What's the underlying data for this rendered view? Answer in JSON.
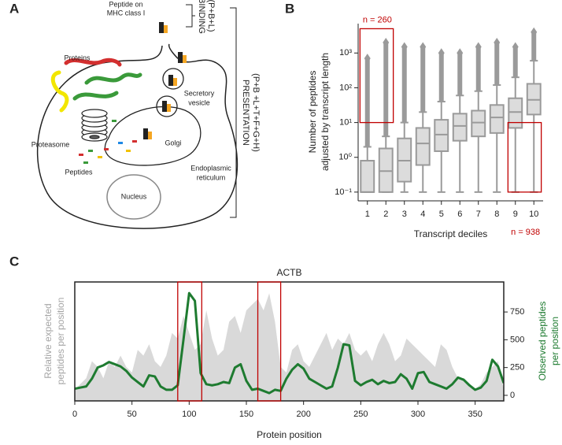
{
  "diagram": {
    "panel_label": "A",
    "labels": {
      "peptide_on_mhc": [
        "Peptide on",
        "MHC class I"
      ],
      "binding": [
        "BINDING",
        "(P+B+L)"
      ],
      "proteins": "Proteins",
      "proteasome": "Proteasome",
      "peptides": "Peptides",
      "secretory_vesicle": [
        "Secretory",
        "vesicle"
      ],
      "golgi": "Golgi",
      "er": [
        "Endoplasmic",
        "reticulum"
      ],
      "nucleus": "Nucleus",
      "presentation": [
        "PRESENTATION",
        "(P+B +L+T+F+G+H)"
      ]
    }
  },
  "chart_data": [
    {
      "type": "box",
      "panel_label": "B",
      "categories": [
        "1",
        "2",
        "3",
        "4",
        "5",
        "6",
        "7",
        "8",
        "9",
        "10"
      ],
      "x_label": "Transcript deciles",
      "y_label": [
        "Number of peptides",
        "adjusted by transcript length"
      ],
      "log_scale": true,
      "ylim": [
        0.056,
        7000
      ],
      "yticks": [
        {
          "value": 0.1,
          "label": "10⁻¹"
        },
        {
          "value": 1,
          "label": "10⁰"
        },
        {
          "value": 10,
          "label": "10¹"
        },
        {
          "value": 100,
          "label": "10²"
        },
        {
          "value": 1000,
          "label": "10³"
        }
      ],
      "color": "#dcdcdc",
      "edge_color": "#9a9a9a",
      "boxes": {
        "whisker_low": [
          0.1,
          0.1,
          0.1,
          0.1,
          0.1,
          0.1,
          0.1,
          0.1,
          0.1,
          0.1
        ],
        "q1": [
          0.1,
          0.1,
          0.2,
          0.6,
          1.5,
          3,
          4,
          5,
          7,
          17
        ],
        "median": [
          0.1,
          0.4,
          0.8,
          2.5,
          4.5,
          8,
          10,
          14,
          20,
          45
        ],
        "q3": [
          0.8,
          1.8,
          3.5,
          7,
          12,
          18,
          22,
          32,
          50,
          130
        ],
        "whisker_high": [
          2,
          4,
          10,
          20,
          40,
          60,
          80,
          120,
          200,
          600
        ],
        "outlier_max": [
          700,
          2000,
          1500,
          1500,
          1000,
          1000,
          1500,
          2000,
          1500,
          4000
        ]
      },
      "highlight_color": "#c00000",
      "highlights": [
        {
          "x": [
            0.6,
            2.4
          ],
          "y": [
            10,
            5000
          ],
          "label": "n = 260"
        },
        {
          "x": [
            8.6,
            10.4
          ],
          "y": [
            0.1,
            10
          ],
          "label": "n = 938"
        }
      ]
    },
    {
      "type": "line_area",
      "panel_label": "C",
      "title": "ACTB",
      "x_label": "Protein position",
      "y_label": [
        "Relative expected",
        "peptides per position"
      ],
      "y2_label": [
        "Observed peptides",
        "per position"
      ],
      "x": [
        0,
        5,
        10,
        15,
        20,
        25,
        30,
        35,
        40,
        45,
        50,
        55,
        60,
        65,
        70,
        75,
        80,
        85,
        90,
        95,
        100,
        105,
        110,
        115,
        120,
        125,
        130,
        135,
        140,
        145,
        150,
        155,
        160,
        165,
        170,
        175,
        180,
        185,
        190,
        195,
        200,
        205,
        210,
        215,
        220,
        225,
        230,
        235,
        240,
        245,
        250,
        255,
        260,
        265,
        270,
        275,
        280,
        285,
        290,
        295,
        300,
        305,
        310,
        315,
        320,
        325,
        330,
        335,
        340,
        345,
        350,
        355,
        360,
        365,
        370,
        375
      ],
      "xlim": [
        0,
        375
      ],
      "xticks": [
        0,
        50,
        100,
        150,
        200,
        250,
        300,
        350
      ],
      "ylim": [
        0,
        1.05
      ],
      "y2lim": [
        -50,
        1020
      ],
      "y2ticks": [
        0,
        250,
        500,
        750
      ],
      "series": [
        {
          "color": "#d9d9d9",
          "axis": "y",
          "values": [
            0.1,
            0.15,
            0.2,
            0.35,
            0.3,
            0.2,
            0.35,
            0.3,
            0.4,
            0.3,
            0.25,
            0.45,
            0.4,
            0.5,
            0.35,
            0.3,
            0.4,
            0.6,
            0.55,
            0.75,
            0.6,
            0.45,
            0.5,
            0.8,
            0.55,
            0.4,
            0.45,
            0.7,
            0.75,
            0.6,
            0.8,
            0.85,
            0.9,
            0.8,
            0.95,
            0.7,
            0.3,
            0.25,
            0.45,
            0.5,
            0.35,
            0.3,
            0.4,
            0.5,
            0.6,
            0.45,
            0.55,
            0.5,
            0.6,
            0.45,
            0.4,
            0.45,
            0.35,
            0.5,
            0.6,
            0.5,
            0.35,
            0.4,
            0.55,
            0.5,
            0.45,
            0.4,
            0.35,
            0.3,
            0.5,
            0.45,
            0.3,
            0.2,
            0.2,
            0.15,
            0.1,
            0.15,
            0.25,
            0.3,
            0.35,
            0.1
          ]
        },
        {
          "color": "#1e7b30",
          "axis": "y2",
          "values": [
            60,
            70,
            80,
            150,
            250,
            270,
            300,
            280,
            260,
            220,
            160,
            120,
            80,
            180,
            170,
            80,
            50,
            50,
            90,
            500,
            920,
            850,
            200,
            100,
            90,
            100,
            120,
            110,
            250,
            280,
            130,
            50,
            60,
            40,
            20,
            50,
            40,
            150,
            230,
            280,
            240,
            150,
            120,
            90,
            60,
            80,
            250,
            460,
            450,
            130,
            90,
            120,
            140,
            100,
            130,
            110,
            120,
            190,
            150,
            60,
            200,
            210,
            120,
            100,
            80,
            60,
            100,
            160,
            140,
            90,
            50,
            70,
            130,
            320,
            260,
            110
          ]
        }
      ],
      "highlight_color": "#c00000",
      "highlights": [
        {
          "x": [
            90,
            111
          ]
        },
        {
          "x": [
            160,
            180
          ]
        }
      ]
    }
  ]
}
